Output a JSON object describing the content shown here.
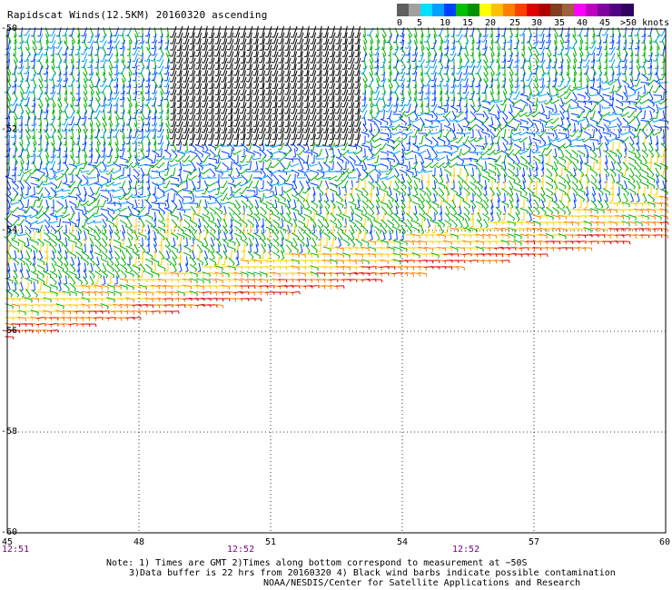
{
  "title": "Rapidscat Winds(12.5KM) 20160320 ascending",
  "legend": {
    "labels": [
      "0",
      "5",
      "10",
      "15",
      "20",
      "25",
      "30",
      "35",
      "40",
      "45",
      ">50 knots"
    ],
    "colors": [
      "#606060",
      "#a0a0a0",
      "#00e0ff",
      "#00a0ff",
      "#0040ff",
      "#00c000",
      "#009000",
      "#ffff00",
      "#ffc000",
      "#ff8000",
      "#ff4000",
      "#e00000",
      "#b00000",
      "#804020",
      "#a06040",
      "#ff00ff",
      "#c000c0",
      "#8000a0",
      "#500080",
      "#300060"
    ]
  },
  "axes": {
    "lat_labels": [
      "-50",
      "-52",
      "-54",
      "-56",
      "-58",
      "-60"
    ],
    "lon_labels": [
      "45",
      "48",
      "51",
      "54",
      "57",
      "60"
    ]
  },
  "times": [
    "12:51",
    "12:52",
    "12:52"
  ],
  "notes": {
    "line1": "Note: 1) Times are GMT 2)Times along bottom correspond to measurement at −50S",
    "line2": "3)Data buffer is 22 hrs from 20160320 4) Black wind barbs indicate possible contamination",
    "line3": "NOAA/NESDIS/Center for Satellite Applications and Research"
  },
  "palette": {
    "calm": "#0040ff",
    "light": "#00a0ff",
    "moderate": "#00b000",
    "fresh": "#ffd000",
    "strong": "#ff8000",
    "gale": "#e00000",
    "contaminated": "#000000"
  }
}
